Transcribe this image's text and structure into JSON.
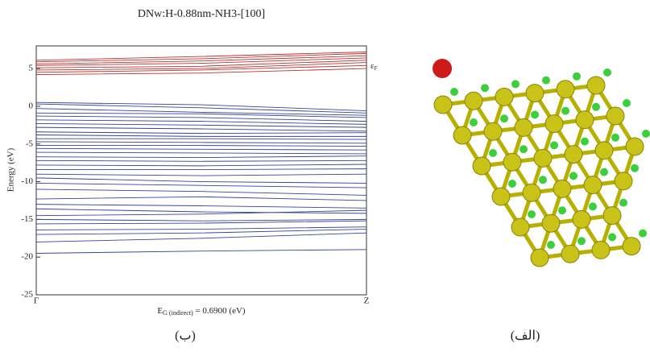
{
  "chart_data": {
    "type": "line",
    "title": "DNw:H-0.88nm-NH3-[100]",
    "y_label": "Energy (eV)",
    "x_label": [
      "E",
      "G (indirect)",
      " = 0.6900 (eV)"
    ],
    "fermi_label": [
      "ε",
      "F"
    ],
    "categories": [
      "Γ",
      null,
      "Z"
    ],
    "ylim": [
      -25,
      8
    ],
    "yticks": [
      -25,
      -20,
      -15,
      -10,
      -5,
      0,
      5
    ],
    "series": [
      {
        "color": "#c03030",
        "values": [
          4.2,
          4.4,
          5.0
        ]
      },
      {
        "color": "#c03030",
        "values": [
          4.5,
          4.8,
          5.4
        ]
      },
      {
        "color": "#c03030",
        "values": [
          4.8,
          5.0,
          5.8
        ]
      },
      {
        "color": "#c03030",
        "values": [
          5.1,
          5.3,
          6.1
        ]
      },
      {
        "color": "#c03030",
        "values": [
          5.4,
          5.7,
          6.4
        ]
      },
      {
        "color": "#c03030",
        "values": [
          5.6,
          6.0,
          6.7
        ]
      },
      {
        "color": "#c03030",
        "values": [
          5.9,
          6.3,
          7.0
        ]
      },
      {
        "color": "#c03030",
        "values": [
          6.1,
          6.6,
          7.2
        ]
      },
      {
        "color": "#33449a",
        "values": [
          0.5,
          0.2,
          -0.6
        ]
      },
      {
        "color": "#33449a",
        "values": [
          0.3,
          -0.2,
          -0.9
        ]
      },
      {
        "color": "#33449a",
        "values": [
          -0.3,
          -0.8,
          -1.2
        ]
      },
      {
        "color": "#33449a",
        "values": [
          -0.9,
          -1.0,
          -1.5
        ]
      },
      {
        "color": "#33449a",
        "values": [
          -1.3,
          -1.5,
          -2.0
        ]
      },
      {
        "color": "#33449a",
        "values": [
          -1.8,
          -2.0,
          -2.4
        ]
      },
      {
        "color": "#33449a",
        "values": [
          -2.3,
          -2.5,
          -2.8
        ]
      },
      {
        "color": "#33449a",
        "values": [
          -2.8,
          -3.0,
          -3.3
        ]
      },
      {
        "color": "#33449a",
        "values": [
          -3.4,
          -3.6,
          -3.5
        ]
      },
      {
        "color": "#33449a",
        "values": [
          -3.8,
          -4.0,
          -4.0
        ]
      },
      {
        "color": "#33449a",
        "values": [
          -4.3,
          -4.3,
          -4.4
        ]
      },
      {
        "color": "#33449a",
        "values": [
          -4.7,
          -4.8,
          -4.9
        ]
      },
      {
        "color": "#33449a",
        "values": [
          -5.2,
          -5.2,
          -5.3
        ]
      },
      {
        "color": "#33449a",
        "values": [
          -5.6,
          -5.7,
          -5.8
        ]
      },
      {
        "color": "#33449a",
        "values": [
          -6.1,
          -6.2,
          -6.3
        ]
      },
      {
        "color": "#33449a",
        "values": [
          -6.7,
          -6.8,
          -6.6
        ]
      },
      {
        "color": "#33449a",
        "values": [
          -7.2,
          -7.3,
          -7.2
        ]
      },
      {
        "color": "#33449a",
        "values": [
          -7.8,
          -7.9,
          -7.7
        ]
      },
      {
        "color": "#33449a",
        "values": [
          -8.4,
          -8.4,
          -8.3
        ]
      },
      {
        "color": "#33449a",
        "values": [
          -9.0,
          -9.2,
          -9.0
        ]
      },
      {
        "color": "#33449a",
        "values": [
          -9.5,
          -10.0,
          -10.2
        ]
      },
      {
        "color": "#33449a",
        "values": [
          -10.2,
          -10.5,
          -10.8
        ]
      },
      {
        "color": "#33449a",
        "values": [
          -11.0,
          -11.3,
          -11.8
        ]
      },
      {
        "color": "#33449a",
        "values": [
          -12.3,
          -12.0,
          -12.5
        ]
      },
      {
        "color": "#33449a",
        "values": [
          -13.0,
          -13.2,
          -13.5
        ]
      },
      {
        "color": "#33449a",
        "values": [
          -13.6,
          -14.0,
          -14.2
        ]
      },
      {
        "color": "#33449a",
        "values": [
          -14.5,
          -14.3,
          -13.8
        ]
      },
      {
        "color": "#33449a",
        "values": [
          -15.0,
          -15.2,
          -15.0
        ]
      },
      {
        "color": "#33449a",
        "values": [
          -15.6,
          -15.5,
          -15.2
        ]
      },
      {
        "color": "#33449a",
        "values": [
          -16.4,
          -16.3,
          -16.0
        ]
      },
      {
        "color": "#33449a",
        "values": [
          -17.0,
          -16.8,
          -16.3
        ]
      },
      {
        "color": "#33449a",
        "values": [
          -18.0,
          -17.5,
          -16.8
        ]
      },
      {
        "color": "#33449a",
        "values": [
          -19.5,
          -19.2,
          -19.0
        ]
      }
    ]
  },
  "captions": [
    "(ب)",
    "(الف)"
  ]
}
